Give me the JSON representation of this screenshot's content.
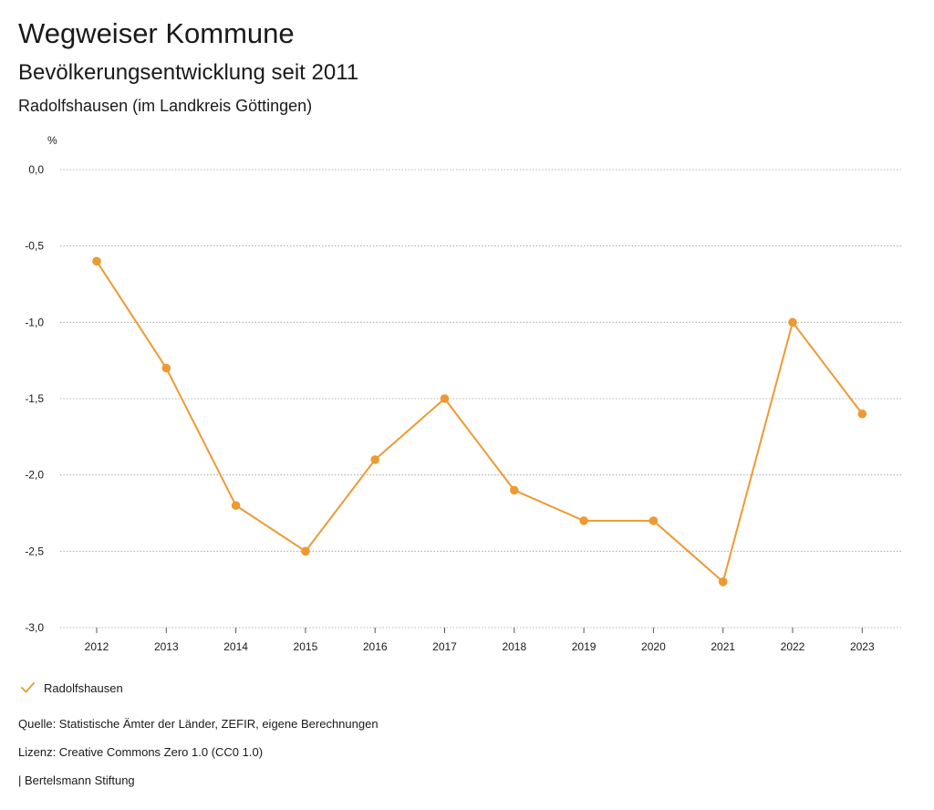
{
  "header": {
    "title": "Wegweiser Kommune",
    "subtitle": "Bevölkerungsentwicklung seit 2011",
    "region": "Radolfshausen (im Landkreis Göttingen)"
  },
  "chart_data": {
    "type": "line",
    "title": "Bevölkerungsentwicklung seit 2011",
    "xlabel": "",
    "ylabel": "%",
    "categories": [
      "2012",
      "2013",
      "2014",
      "2015",
      "2016",
      "2017",
      "2018",
      "2019",
      "2020",
      "2021",
      "2022",
      "2023"
    ],
    "series": [
      {
        "name": "Radolfshausen",
        "color": "#ee9a32",
        "values": [
          -0.6,
          -1.3,
          -2.2,
          -2.5,
          -1.9,
          -1.5,
          -2.1,
          -2.3,
          -2.3,
          -2.7,
          -1.0,
          -1.6
        ]
      }
    ],
    "ylim": [
      -3.0,
      0.0
    ],
    "yticks": [
      0.0,
      -0.5,
      -1.0,
      -1.5,
      -2.0,
      -2.5,
      -3.0
    ],
    "ytick_labels": [
      "0,0",
      "-0,5",
      "-1,0",
      "-1,5",
      "-2,0",
      "-2,5",
      "-3,0"
    ],
    "grid": true,
    "legend": "bottom-left"
  },
  "legend": {
    "label": "Radolfshausen",
    "icon": "check-icon"
  },
  "footer": {
    "source": "Quelle: Statistische Ämter der Länder, ZEFIR, eigene Berechnungen",
    "license": "Lizenz: Creative Commons Zero 1.0 (CC0 1.0)",
    "brand": "| Bertelsmann Stiftung"
  },
  "colors": {
    "series": "#ee9a32",
    "grid": "#9a9a9a",
    "text": "#1a1a1a"
  }
}
